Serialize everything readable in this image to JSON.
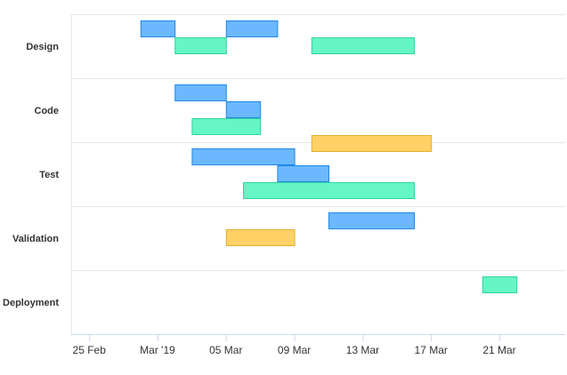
{
  "chart_data": {
    "type": "gantt",
    "categories": [
      "Design",
      "Code",
      "Test",
      "Validation",
      "Deployment"
    ],
    "x_ticks": [
      {
        "date": "2019-02-25",
        "label": "25 Feb"
      },
      {
        "date": "2019-03-01",
        "label": "Mar '19"
      },
      {
        "date": "2019-03-05",
        "label": "05 Mar"
      },
      {
        "date": "2019-03-09",
        "label": "09 Mar"
      },
      {
        "date": "2019-03-13",
        "label": "13 Mar"
      },
      {
        "date": "2019-03-17",
        "label": "17 Mar"
      },
      {
        "date": "2019-03-21",
        "label": "21 Mar"
      }
    ],
    "xlim": [
      "2019-02-24",
      "2019-03-24"
    ],
    "colors": {
      "blue": "#6bb8ff",
      "blue_border": "#1e88e5",
      "green": "#66f5c5",
      "green_border": "#2dd4a0",
      "orange": "#ffd166",
      "orange_border": "#e0b030"
    },
    "tasks": [
      {
        "category": "Design",
        "start": "2019-02-28",
        "end": "2019-03-02",
        "color": "blue",
        "row": 0
      },
      {
        "category": "Design",
        "start": "2019-03-05",
        "end": "2019-03-08",
        "color": "blue",
        "row": 0
      },
      {
        "category": "Design",
        "start": "2019-03-02",
        "end": "2019-03-05",
        "color": "green",
        "row": 1
      },
      {
        "category": "Design",
        "start": "2019-03-10",
        "end": "2019-03-16",
        "color": "green",
        "row": 1
      },
      {
        "category": "Code",
        "start": "2019-03-02",
        "end": "2019-03-05",
        "color": "blue",
        "row": 0
      },
      {
        "category": "Code",
        "start": "2019-03-05",
        "end": "2019-03-07",
        "color": "blue",
        "row": 1
      },
      {
        "category": "Code",
        "start": "2019-03-03",
        "end": "2019-03-07",
        "color": "green",
        "row": 2
      },
      {
        "category": "Code",
        "start": "2019-03-10",
        "end": "2019-03-17",
        "color": "orange",
        "row": 3
      },
      {
        "category": "Test",
        "start": "2019-03-03",
        "end": "2019-03-09",
        "color": "blue",
        "row": 0
      },
      {
        "category": "Test",
        "start": "2019-03-08",
        "end": "2019-03-11",
        "color": "blue",
        "row": 1
      },
      {
        "category": "Test",
        "start": "2019-03-06",
        "end": "2019-03-16",
        "color": "green",
        "row": 2
      },
      {
        "category": "Validation",
        "start": "2019-03-11",
        "end": "2019-03-16",
        "color": "blue",
        "row": 0
      },
      {
        "category": "Validation",
        "start": "2019-03-05",
        "end": "2019-03-09",
        "color": "orange",
        "row": 1
      },
      {
        "category": "Deployment",
        "start": "2019-03-20",
        "end": "2019-03-22",
        "color": "green",
        "row": 0
      }
    ]
  }
}
